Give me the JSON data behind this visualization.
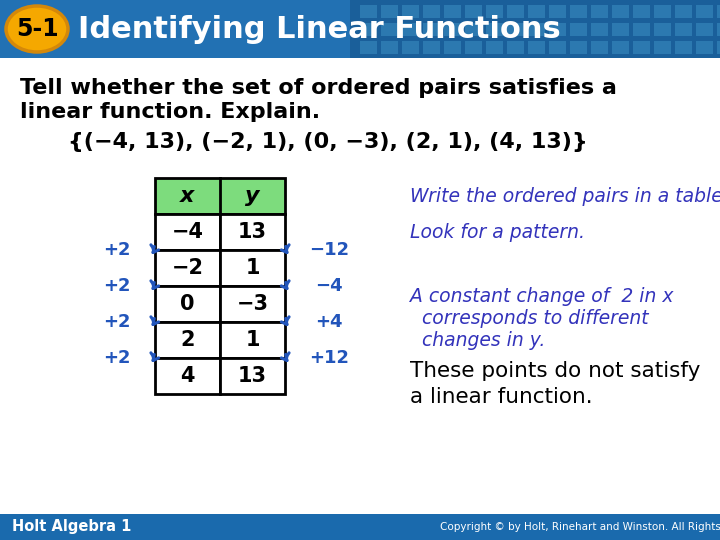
{
  "title_label": "5-1",
  "title_text": "Identifying Linear Functions",
  "header_bg": "#2271b3",
  "header_bg2": "#1a5f9a",
  "title_oval_color": "#f5a800",
  "title_oval_edge": "#d4880a",
  "body_bg": "#ffffff",
  "question_line1": "Tell whether the set of ordered pairs satisfies a",
  "question_line2": "linear function. Explain.",
  "set_text": "{(−4, 13), (−2, 1), (0, −3), (2, 1), (4, 13)}",
  "x_values": [
    "−4",
    "−2",
    "0",
    "2",
    "4"
  ],
  "y_values": [
    "13",
    "1",
    "−3",
    "1",
    "13"
  ],
  "x_label": "x",
  "y_label": "y",
  "table_header_color": "#7ddc7d",
  "left_changes": [
    "+2",
    "+2",
    "+2",
    "+2"
  ],
  "right_changes": [
    "−12",
    "−4",
    "+4",
    "+12"
  ],
  "note1": "Write the ordered pairs in a table.",
  "note2": "Look for a pattern.",
  "note3_line1": "A constant change of  2 in x",
  "note3_line2": "   corresponds to different",
  "note3_line3": "   changes in y.",
  "note4_line1": "These points do not satisfy",
  "note4_line2": "a linear function.",
  "note_color": "#3333bb",
  "note4_color": "#000000",
  "arrow_color": "#2255bb",
  "footer_text": "Holt Algebra 1",
  "footer_bg": "#1a6aad",
  "footer_copyright": "Copyright © by Holt, Rinehart and Winston. All Rights Reserved."
}
